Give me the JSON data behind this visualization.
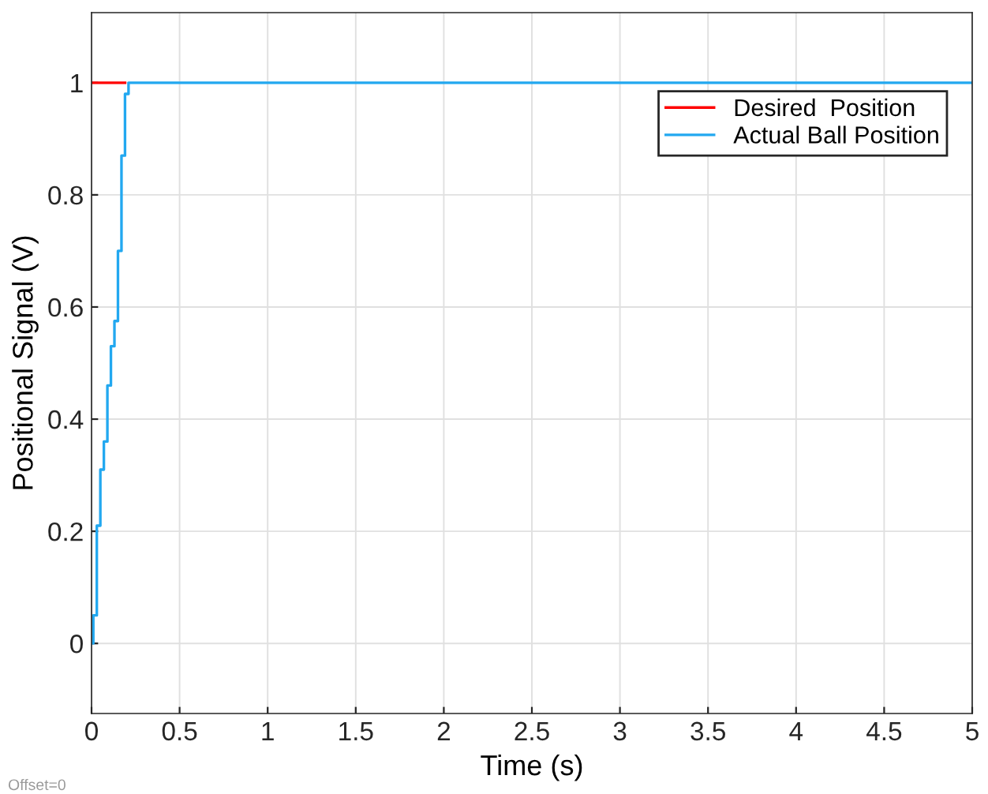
{
  "chart_data": {
    "type": "step",
    "xlabel": "Time (s)",
    "ylabel": "Positional Signal (V)",
    "series": [
      {
        "name": "Desired  Position",
        "color": "#ff0000",
        "x": [
          0,
          0.19
        ],
        "values": [
          1,
          1
        ]
      },
      {
        "name": "Actual Ball Position",
        "color": "#22a8f0",
        "x": [
          0,
          0.01,
          0.03,
          0.05,
          0.07,
          0.09,
          0.11,
          0.13,
          0.15,
          0.17,
          0.19,
          0.21,
          5
        ],
        "values": [
          0,
          0.05,
          0.21,
          0.31,
          0.36,
          0.46,
          0.53,
          0.575,
          0.7,
          0.87,
          0.98,
          1,
          1
        ]
      }
    ],
    "xlim": [
      0,
      5
    ],
    "xticks": [
      0,
      0.5,
      1,
      1.5,
      2,
      2.5,
      3,
      3.5,
      4,
      4.5,
      5
    ],
    "ylim": [
      -0.125,
      1.125
    ],
    "yticks": [
      0,
      0.2,
      0.4,
      0.6,
      0.8,
      1
    ],
    "grid": true,
    "legend": "top right",
    "line_style": "solid",
    "annotations": [
      "Offset=0"
    ]
  }
}
